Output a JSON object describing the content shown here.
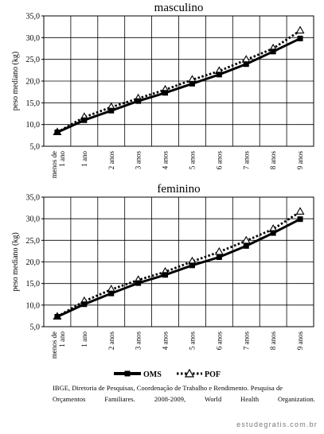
{
  "chart_data": [
    {
      "type": "line",
      "title": "masculino",
      "ylabel": "peso mediano (kg)",
      "ylim": [
        5.0,
        35.0
      ],
      "yticks": [
        "5,0",
        "10,0",
        "15,0",
        "20,0",
        "25,0",
        "30,0",
        "35,0"
      ],
      "categories": [
        "menos de 1 ano",
        "1 ano",
        "2 anos",
        "3 anos",
        "4 anos",
        "5 anos",
        "6 anos",
        "7 anos",
        "8 anos",
        "9 anos"
      ],
      "grid": true,
      "series": [
        {
          "name": "OMS",
          "values": [
            8.2,
            11.0,
            13.2,
            15.4,
            17.3,
            19.4,
            21.5,
            23.9,
            26.8,
            29.8
          ]
        },
        {
          "name": "POF",
          "values": [
            8.2,
            11.7,
            14.0,
            16.0,
            18.0,
            20.3,
            22.3,
            24.9,
            27.5,
            31.6
          ]
        }
      ]
    },
    {
      "type": "line",
      "title": "feminino",
      "ylabel": "peso mediano (kg)",
      "ylim": [
        5.0,
        35.0
      ],
      "yticks": [
        "5,0",
        "10,0",
        "15,0",
        "20,0",
        "25,0",
        "30,0",
        "35,0"
      ],
      "categories": [
        "menos de 1 ano",
        "1 ano",
        "2 anos",
        "3 anos",
        "4 anos",
        "5 anos",
        "6 anos",
        "7 anos",
        "8 anos",
        "9 anos"
      ],
      "grid": true,
      "series": [
        {
          "name": "OMS",
          "values": [
            7.3,
            10.2,
            12.7,
            15.1,
            17.0,
            19.2,
            21.1,
            23.7,
            26.7,
            29.9
          ]
        },
        {
          "name": "POF",
          "values": [
            7.3,
            10.9,
            13.6,
            15.8,
            17.7,
            20.1,
            22.3,
            24.9,
            27.6,
            31.6
          ]
        }
      ]
    }
  ],
  "legend": {
    "oms": "OMS",
    "pof": "POF"
  },
  "source": {
    "line1": "IBGE, Diretoria de Pesquisas, Coordenação de Trabalho e Rendimento. Pesquisa de",
    "line2": "Orçamentos Familiares. 2008-2009, World Health Organization."
  },
  "watermark": "estudegratis.com.br",
  "colors": {
    "line": "#000000",
    "grid": "#000000",
    "pof_marker_fill": "#ffffff"
  }
}
